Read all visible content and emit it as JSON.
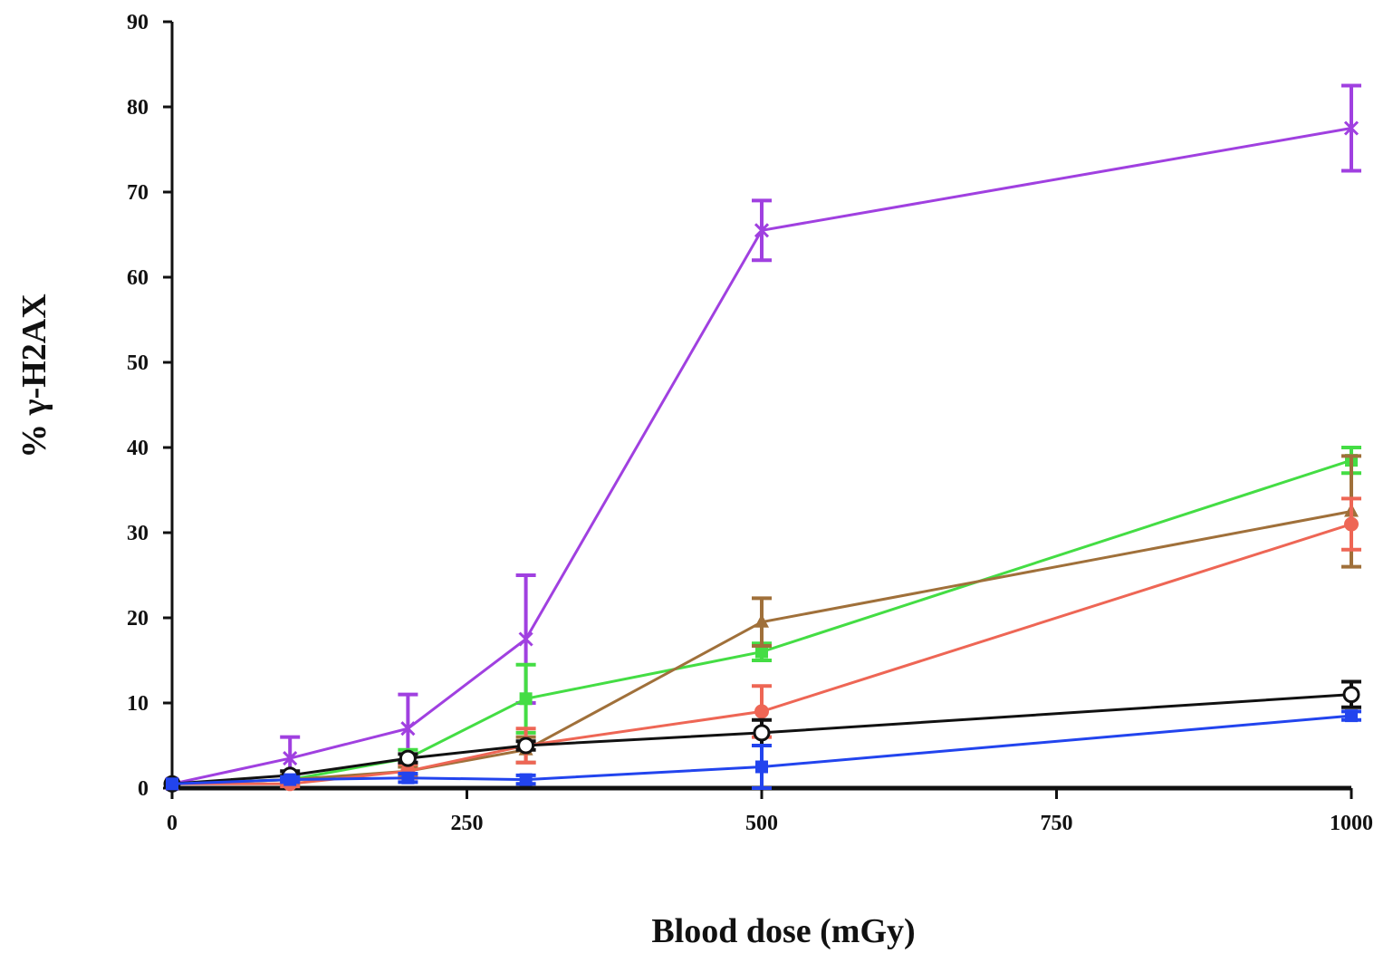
{
  "chart_data": {
    "type": "line",
    "title": "",
    "xlabel": "Blood dose (mGy)",
    "ylabel": "% γ-H2AX",
    "xlim": [
      0,
      1000
    ],
    "ylim": [
      0,
      90
    ],
    "xticks": [
      0,
      250,
      500,
      750,
      1000
    ],
    "xtick_labels": [
      "0",
      "250",
      "500",
      "750",
      "1000"
    ],
    "yticks": [
      0,
      10,
      20,
      30,
      40,
      50,
      60,
      70,
      80,
      90
    ],
    "ytick_labels": [
      "0",
      "10",
      "20",
      "30",
      "40",
      "50",
      "60",
      "70",
      "80",
      "90"
    ],
    "grid": false,
    "legend": "none",
    "series": [
      {
        "color": "#a040e0",
        "marker": "x",
        "x": [
          0,
          100,
          200,
          300,
          500,
          1000
        ],
        "y": [
          0.5,
          3.5,
          7,
          17.5,
          65.5,
          77.5
        ],
        "err": [
          0,
          2.5,
          4,
          7.5,
          3.5,
          5
        ]
      },
      {
        "color": "#44dd44",
        "marker": "square",
        "x": [
          0,
          100,
          200,
          300,
          500,
          1000
        ],
        "y": [
          0.5,
          1,
          3.5,
          10.5,
          16,
          38.5
        ],
        "err": [
          0,
          0.5,
          1,
          4,
          1,
          1.5
        ]
      },
      {
        "color": "#a0703a",
        "marker": "triangle",
        "x": [
          0,
          100,
          200,
          300,
          500,
          1000
        ],
        "y": [
          0.5,
          1,
          2,
          4.5,
          19.5,
          32.5
        ],
        "err": [
          0,
          0.5,
          0.5,
          1.5,
          2.8,
          6.5
        ]
      },
      {
        "color": "#ee6655",
        "marker": "circle",
        "x": [
          0,
          100,
          200,
          300,
          500,
          1000
        ],
        "y": [
          0.5,
          0.5,
          2,
          5,
          9,
          31
        ],
        "err": [
          0,
          0.3,
          0.8,
          2,
          3,
          3
        ]
      },
      {
        "color": "#111111",
        "marker": "open-circle",
        "x": [
          0,
          100,
          200,
          300,
          500,
          1000
        ],
        "y": [
          0.5,
          1.5,
          3.5,
          5,
          6.5,
          11
        ],
        "err": [
          0,
          0.5,
          0.5,
          0.5,
          1.5,
          1.5
        ]
      },
      {
        "color": "#2244ee",
        "marker": "square",
        "x": [
          0,
          100,
          200,
          300,
          500,
          1000
        ],
        "y": [
          0.5,
          1,
          1.2,
          1,
          2.5,
          8.5
        ],
        "err": [
          0,
          0.3,
          0.5,
          0.5,
          2.5,
          0.5
        ]
      }
    ]
  }
}
